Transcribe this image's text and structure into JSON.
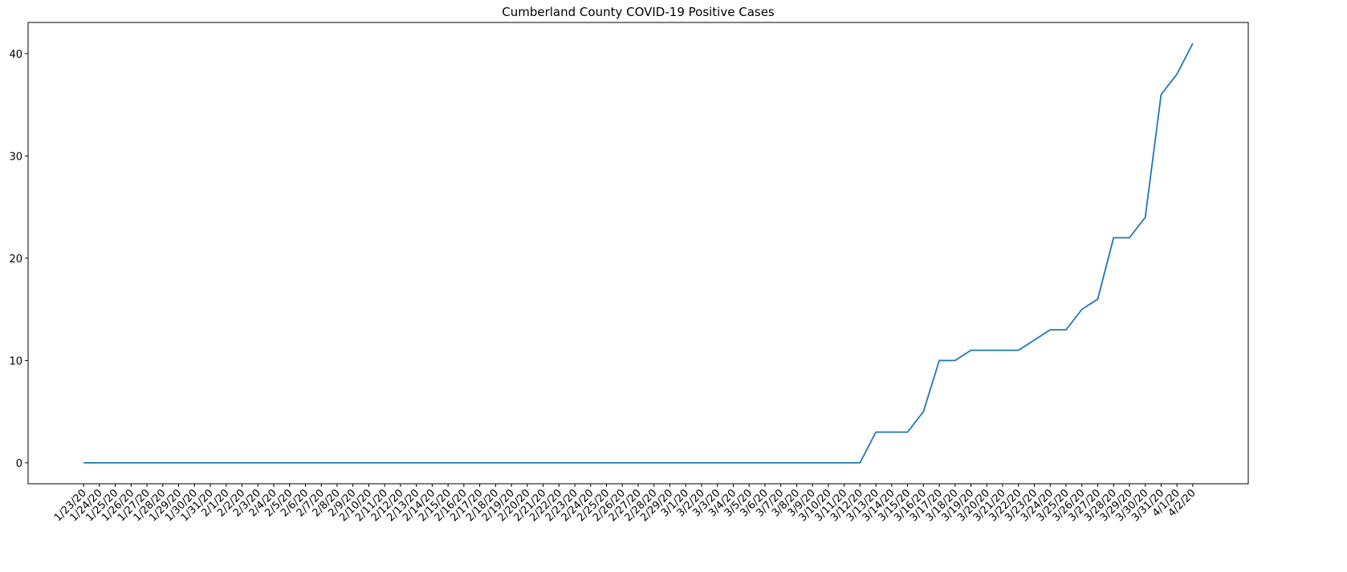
{
  "chart_data": {
    "type": "line",
    "title": "Cumberland County COVID-19 Positive Cases",
    "categories": [
      "1/23/20",
      "1/24/20",
      "1/25/20",
      "1/26/20",
      "1/27/20",
      "1/28/20",
      "1/29/20",
      "1/30/20",
      "1/31/20",
      "2/1/20",
      "2/2/20",
      "2/3/20",
      "2/4/20",
      "2/5/20",
      "2/6/20",
      "2/7/20",
      "2/8/20",
      "2/9/20",
      "2/10/20",
      "2/11/20",
      "2/12/20",
      "2/13/20",
      "2/14/20",
      "2/15/20",
      "2/16/20",
      "2/17/20",
      "2/18/20",
      "2/19/20",
      "2/20/20",
      "2/21/20",
      "2/22/20",
      "2/23/20",
      "2/24/20",
      "2/25/20",
      "2/26/20",
      "2/27/20",
      "2/28/20",
      "2/29/20",
      "3/1/20",
      "3/2/20",
      "3/3/20",
      "3/4/20",
      "3/5/20",
      "3/6/20",
      "3/7/20",
      "3/8/20",
      "3/9/20",
      "3/10/20",
      "3/11/20",
      "3/12/20",
      "3/13/20",
      "3/14/20",
      "3/15/20",
      "3/16/20",
      "3/17/20",
      "3/18/20",
      "3/19/20",
      "3/20/20",
      "3/21/20",
      "3/22/20",
      "3/23/20",
      "3/24/20",
      "3/25/20",
      "3/26/20",
      "3/27/20",
      "3/28/20",
      "3/29/20",
      "3/30/20",
      "3/31/20",
      "4/1/20",
      "4/2/20"
    ],
    "values": [
      0,
      0,
      0,
      0,
      0,
      0,
      0,
      0,
      0,
      0,
      0,
      0,
      0,
      0,
      0,
      0,
      0,
      0,
      0,
      0,
      0,
      0,
      0,
      0,
      0,
      0,
      0,
      0,
      0,
      0,
      0,
      0,
      0,
      0,
      0,
      0,
      0,
      0,
      0,
      0,
      0,
      0,
      0,
      0,
      0,
      0,
      0,
      0,
      0,
      0,
      3,
      3,
      3,
      5,
      10,
      10,
      11,
      11,
      11,
      11,
      12,
      13,
      13,
      15,
      16,
      22,
      22,
      24,
      36,
      38,
      41
    ],
    "color": "#1f77b4",
    "ylim": [
      -2.05,
      43.05
    ],
    "yticks": [
      0,
      10,
      20,
      30,
      40
    ],
    "grid": false
  }
}
